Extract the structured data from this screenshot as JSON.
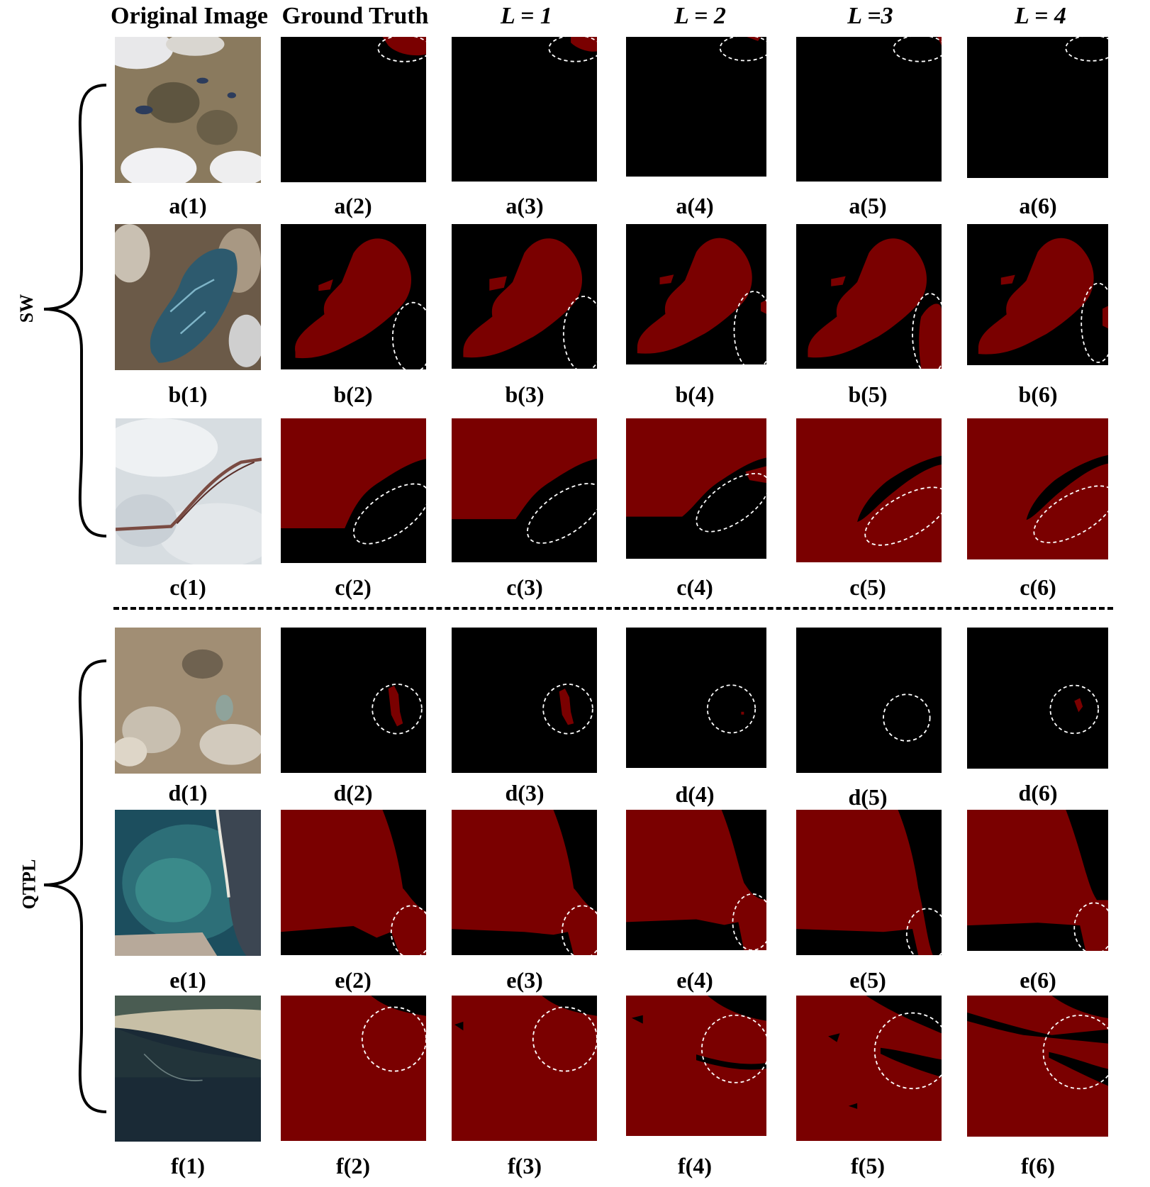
{
  "column_headers": [
    "Original Image",
    "Ground Truth",
    "L = 1",
    "L = 2",
    "L =3",
    "L = 4"
  ],
  "groups": [
    {
      "label": "SW",
      "rows": [
        "a",
        "b",
        "c"
      ]
    },
    {
      "label": "QTPL",
      "rows": [
        "d",
        "e",
        "f"
      ]
    }
  ],
  "captions": {
    "a": [
      "a(1)",
      "a(2)",
      "a(3)",
      "a(4)",
      "a(5)",
      "a(6)"
    ],
    "b": [
      "b(1)",
      "b(2)",
      "b(3)",
      "b(4)",
      "b(5)",
      "b(6)"
    ],
    "c": [
      "c(1)",
      "c(2)",
      "c(3)",
      "c(4)",
      "c(5)",
      "c(6)"
    ],
    "d": [
      "d(1)",
      "d(2)",
      "d(3)",
      "d(4)",
      "d(5)",
      "d(6)"
    ],
    "e": [
      "e(1)",
      "e(2)",
      "e(3)",
      "e(4)",
      "e(5)",
      "e(6)"
    ],
    "f": [
      "f(1)",
      "f(2)",
      "f(3)",
      "f(4)",
      "f(5)",
      "f(6)"
    ]
  },
  "colors": {
    "mask_background": "#000000",
    "mask_foreground": "#7a0000",
    "highlight_ellipse": "#ffffff"
  }
}
